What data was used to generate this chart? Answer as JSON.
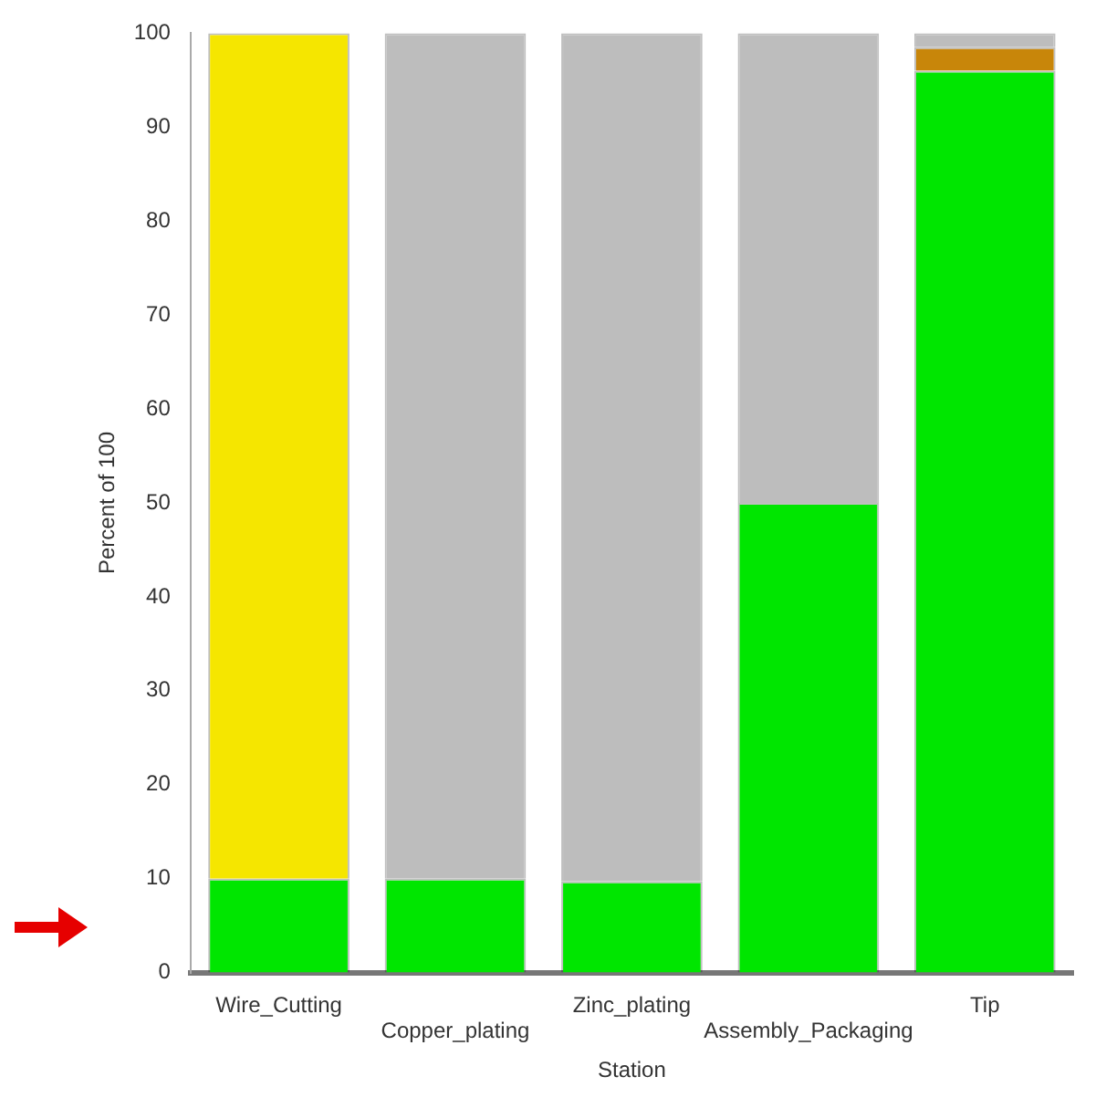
{
  "chart_data": {
    "type": "bar",
    "stacked": true,
    "xlabel": "Station",
    "ylabel": "Percent of 100",
    "categories": [
      "Wire_Cutting",
      "Copper_plating",
      "Zinc_plating",
      "Assembly_Packaging",
      "Tip"
    ],
    "series": [
      {
        "color": "#00e600",
        "values": [
          10,
          10,
          9.7,
          50,
          96
        ]
      },
      {
        "color": "#f5e600",
        "values": [
          90,
          null,
          null,
          null,
          null
        ]
      },
      {
        "color": "#c8860a",
        "values": [
          null,
          null,
          null,
          null,
          2.5
        ]
      },
      {
        "color": "#bdbdbd",
        "values": [
          null,
          90,
          90.3,
          50,
          1.5
        ]
      }
    ],
    "ylim": [
      0,
      100
    ],
    "yticks": [
      0,
      10,
      20,
      30,
      40,
      50,
      60,
      70,
      80,
      90,
      100
    ],
    "grid": false,
    "legend": false
  }
}
